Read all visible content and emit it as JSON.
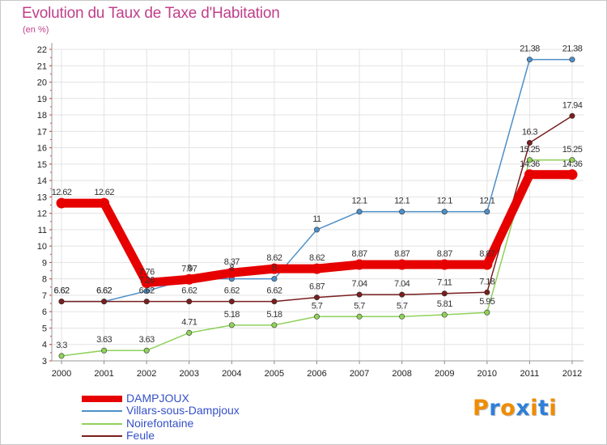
{
  "title": "Evolution du Taux de Taxe d'Habitation",
  "unit": "(en %)",
  "logo": {
    "text": "Proxiti",
    "colors": [
      "#f08c00",
      "#2f7fd8",
      "#f08c00",
      "#2f7fd8",
      "#f08c00",
      "#2f7fd8",
      "#f08c00"
    ]
  },
  "chart_data": {
    "type": "line",
    "title": "Evolution du Taux de Taxe d'Habitation",
    "ylabel": "(en %)",
    "xlabel": "",
    "x": [
      "2000",
      "2001",
      "2002",
      "2003",
      "2004",
      "2005",
      "2006",
      "2007",
      "2008",
      "2009",
      "2010",
      "2011",
      "2012"
    ],
    "ylim": [
      3,
      22
    ],
    "yticks": [
      3,
      4,
      5,
      6,
      7,
      8,
      9,
      10,
      11,
      12,
      13,
      14,
      15,
      16,
      17,
      18,
      19,
      20,
      21,
      22
    ],
    "grid": true,
    "legend": "bottom-left",
    "series": [
      {
        "name": "DAMPJOUX",
        "color": "#e60000",
        "line_width": "thick",
        "values": [
          12.62,
          12.62,
          7.76,
          7.97,
          8.37,
          8.62,
          8.62,
          8.87,
          8.87,
          8.87,
          8.87,
          14.36,
          14.36
        ],
        "labels": [
          "12.62",
          "12.62",
          "7.76",
          "7.97",
          "8.37",
          "8.62",
          "8.62",
          "8.87",
          "8.87",
          "8.87",
          "8.87",
          "14.36",
          "14.36"
        ]
      },
      {
        "name": "Villars-sous-Dampjoux",
        "color": "#4d8fc8",
        "line_width": "thin",
        "values": [
          6.62,
          6.62,
          7.26,
          8,
          8,
          8,
          11,
          12.1,
          12.1,
          12.1,
          12.1,
          21.38,
          21.38
        ],
        "labels": [
          "6.62",
          "6.62",
          "7.26",
          "8",
          "8",
          "8",
          "11",
          "12.1",
          "12.1",
          "12.1",
          "12.1",
          "21.38",
          "21.38"
        ]
      },
      {
        "name": "Noirefontaine",
        "color": "#8fd15a",
        "line_width": "thin",
        "values": [
          3.3,
          3.63,
          3.63,
          4.71,
          5.18,
          5.18,
          5.7,
          5.7,
          5.7,
          5.81,
          5.95,
          15.25,
          15.25
        ],
        "labels": [
          "3.3",
          "3.63",
          "3.63",
          "4.71",
          "5.18",
          "5.18",
          "5.7",
          "5.7",
          "5.7",
          "5.81",
          "5.95",
          "15.25",
          "15.25"
        ]
      },
      {
        "name": "Feule",
        "color": "#7a1e1e",
        "line_width": "thin",
        "values": [
          6.62,
          6.62,
          6.62,
          6.62,
          6.62,
          6.62,
          6.87,
          7.04,
          7.04,
          7.11,
          7.18,
          16.3,
          17.94
        ],
        "labels": [
          "6.62",
          "6.62",
          "6.62",
          "6.62",
          "6.62",
          "6.62",
          "6.87",
          "7.04",
          "7.04",
          "7.11",
          "7.18",
          "16.3",
          "17.94"
        ]
      }
    ]
  }
}
